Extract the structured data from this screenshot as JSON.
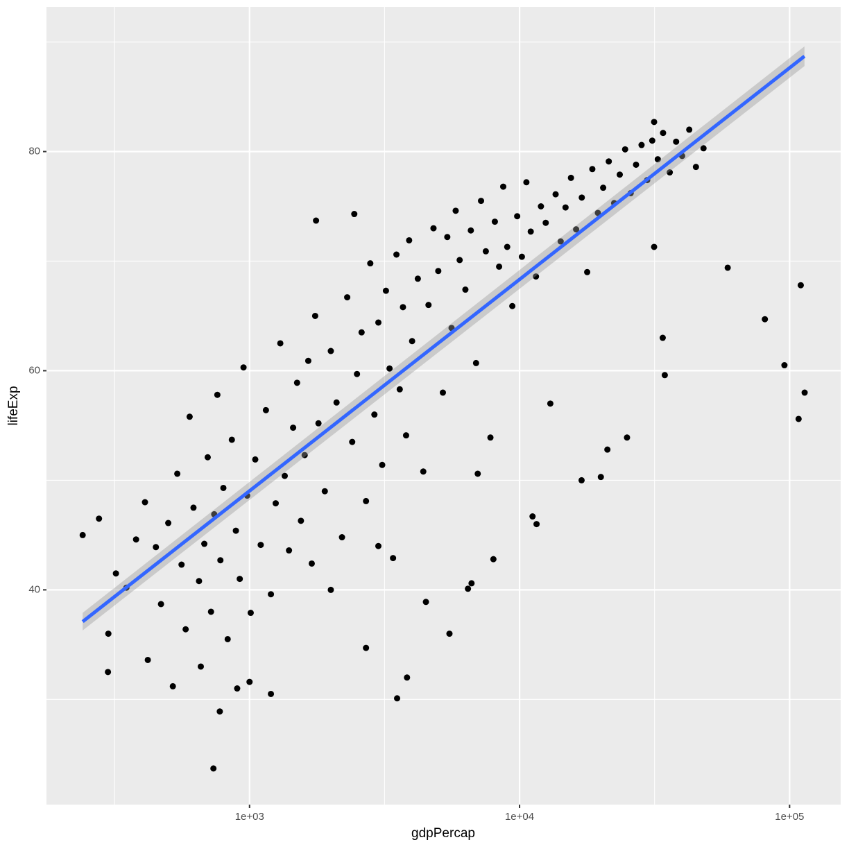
{
  "chart_data": {
    "type": "scatter",
    "x_label": "gdpPercap",
    "y_label": "lifeExp",
    "xscale": "log",
    "xlim": [
      177,
      154600
    ],
    "ylim": [
      20.4,
      93.2
    ],
    "xticks": [
      {
        "value": 1000,
        "label": "1e+03"
      },
      {
        "value": 10000,
        "label": "1e+04"
      },
      {
        "value": 100000,
        "label": "1e+05"
      }
    ],
    "yticks": [
      40,
      60,
      80
    ],
    "grid": true,
    "points": {
      "color": "#000000",
      "x": [
        241,
        277,
        299,
        735,
        113700,
        110000,
        108000,
        95700,
        81000,
        59000,
        34500,
        33900,
        31500,
        31500,
        3520,
        3830,
        776,
        1000,
        6440,
        6640,
        20000,
        16970,
        21150,
        25000,
        11560,
        11170,
        1763,
        2443,
        300,
        320,
        350,
        380,
        410,
        420,
        450,
        470,
        500,
        520,
        540,
        560,
        580,
        600,
        620,
        650,
        680,
        700,
        720,
        740,
        760,
        780,
        800,
        830,
        860,
        890,
        920,
        950,
        980,
        1010,
        1050,
        1100,
        1150,
        1200,
        1250,
        1300,
        1350,
        1400,
        1450,
        1500,
        1550,
        1600,
        1650,
        1700,
        1750,
        1800,
        1900,
        2000,
        2100,
        2200,
        2300,
        2400,
        2500,
        2600,
        2700,
        2800,
        2900,
        3000,
        3100,
        3200,
        3300,
        3400,
        3500,
        3600,
        3700,
        3800,
        3900,
        4000,
        4200,
        4400,
        4600,
        4800,
        5000,
        5200,
        5400,
        5600,
        5800,
        6000,
        6300,
        6600,
        6900,
        7200,
        7500,
        7800,
        8100,
        8400,
        8700,
        9000,
        9400,
        9800,
        10200,
        10600,
        11000,
        11500,
        12000,
        12500,
        13000,
        13600,
        14200,
        14800,
        15500,
        16200,
        17000,
        17800,
        18600,
        19500,
        20400,
        21400,
        22400,
        23500,
        24600,
        25800,
        27000,
        28300,
        29700,
        31000,
        32500,
        34000,
        36000,
        38000,
        40000,
        42500,
        45000,
        48000,
        2000,
        1200,
        900,
        660,
        4500,
        5500,
        2700,
        8000,
        7000,
        3000
      ],
      "y": [
        45.0,
        46.5,
        32.5,
        23.7,
        58.0,
        67.8,
        55.6,
        60.5,
        64.7,
        69.4,
        59.6,
        63.0,
        71.3,
        82.7,
        30.1,
        32.0,
        28.9,
        31.6,
        40.1,
        40.6,
        50.3,
        50.0,
        52.8,
        53.9,
        46.0,
        46.7,
        73.7,
        74.3,
        36.0,
        41.5,
        40.2,
        44.6,
        48.0,
        33.6,
        43.9,
        38.7,
        46.1,
        31.2,
        50.6,
        42.3,
        36.4,
        55.8,
        47.5,
        40.8,
        44.2,
        52.1,
        38.0,
        46.9,
        57.8,
        42.7,
        49.3,
        35.5,
        53.7,
        45.4,
        41.0,
        60.3,
        48.6,
        37.9,
        51.9,
        44.1,
        56.4,
        39.6,
        47.9,
        62.5,
        50.4,
        43.6,
        54.8,
        58.9,
        46.3,
        52.3,
        60.9,
        42.4,
        65.0,
        55.2,
        49.0,
        61.8,
        57.1,
        44.8,
        66.7,
        53.5,
        59.7,
        63.5,
        48.1,
        69.8,
        56.0,
        64.4,
        51.4,
        67.3,
        60.2,
        42.9,
        70.6,
        58.3,
        65.8,
        54.1,
        71.9,
        62.7,
        68.4,
        50.8,
        66.0,
        73.0,
        69.1,
        58.0,
        72.2,
        63.9,
        74.6,
        70.1,
        67.4,
        72.8,
        60.7,
        75.5,
        70.9,
        53.9,
        73.6,
        69.5,
        76.8,
        71.3,
        65.9,
        74.1,
        70.4,
        77.2,
        72.7,
        68.6,
        75.0,
        73.5,
        57.0,
        76.1,
        71.8,
        74.9,
        77.6,
        72.9,
        75.8,
        69.0,
        78.4,
        74.4,
        76.7,
        79.1,
        75.3,
        77.9,
        80.2,
        76.2,
        78.8,
        80.6,
        77.4,
        81.0,
        79.3,
        81.7,
        78.1,
        80.9,
        79.6,
        82.0,
        78.6,
        80.3,
        40.0,
        30.5,
        31.0,
        33.0,
        38.9,
        36.0,
        34.7,
        42.8,
        50.6,
        44.0
      ]
    },
    "smooth": {
      "color": "#3366ff",
      "band_color": "#999999",
      "x": [
        241,
        113523
      ],
      "y": [
        37.1,
        88.7
      ],
      "lower": [
        36.3,
        87.8
      ],
      "upper": [
        37.9,
        89.6
      ]
    }
  }
}
